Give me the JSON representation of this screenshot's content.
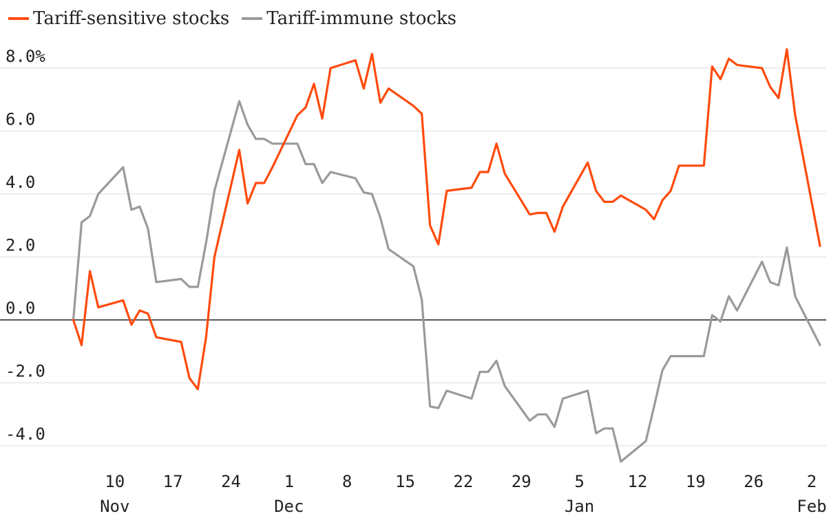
{
  "chart_data": {
    "type": "line",
    "ylim": [
      -4.6,
      8.6
    ],
    "y_ticks": [
      {
        "value": 8,
        "label": "8.0%"
      },
      {
        "value": 6,
        "label": "6.0"
      },
      {
        "value": 4,
        "label": "4.0"
      },
      {
        "value": 2,
        "label": "2.0"
      },
      {
        "value": 0,
        "label": "0.0"
      },
      {
        "value": -2,
        "label": "-2.0"
      },
      {
        "value": -4,
        "label": "-4.0"
      }
    ],
    "x_ticks": [
      {
        "day": 10,
        "label": "10",
        "month_label": "Nov"
      },
      {
        "day": 17,
        "label": "17",
        "month_label": ""
      },
      {
        "day": 24,
        "label": "24",
        "month_label": ""
      },
      {
        "day": 31,
        "label": "1",
        "month_label": "Dec"
      },
      {
        "day": 38,
        "label": "8",
        "month_label": ""
      },
      {
        "day": 45,
        "label": "15",
        "month_label": ""
      },
      {
        "day": 52,
        "label": "22",
        "month_label": ""
      },
      {
        "day": 59,
        "label": "29",
        "month_label": ""
      },
      {
        "day": 66,
        "label": "5",
        "month_label": "Jan"
      },
      {
        "day": 73,
        "label": "12",
        "month_label": ""
      },
      {
        "day": 80,
        "label": "19",
        "month_label": ""
      },
      {
        "day": 87,
        "label": "26",
        "month_label": ""
      },
      {
        "day": 94,
        "label": "2",
        "month_label": "Feb"
      }
    ],
    "grid": true,
    "legend_position": "top-left",
    "series": [
      {
        "name": "Tariff-sensitive stocks",
        "color": "#ff4a0d",
        "points": [
          [
            5,
            0.0
          ],
          [
            6,
            -0.8
          ],
          [
            7,
            1.55
          ],
          [
            8,
            0.4
          ],
          [
            11,
            0.62
          ],
          [
            12,
            -0.15
          ],
          [
            13,
            0.3
          ],
          [
            14,
            0.2
          ],
          [
            15,
            -0.55
          ],
          [
            18,
            -0.7
          ],
          [
            19,
            -1.85
          ],
          [
            20,
            -2.2
          ],
          [
            21,
            -0.55
          ],
          [
            22,
            2.0
          ],
          [
            25,
            5.4
          ],
          [
            26,
            3.7
          ],
          [
            27,
            4.35
          ],
          [
            28,
            4.35
          ],
          [
            29,
            4.85
          ],
          [
            32,
            6.5
          ],
          [
            33,
            6.75
          ],
          [
            34,
            7.5
          ],
          [
            35,
            6.4
          ],
          [
            36,
            8.0
          ],
          [
            39,
            8.25
          ],
          [
            40,
            7.35
          ],
          [
            41,
            8.45
          ],
          [
            42,
            6.9
          ],
          [
            43,
            7.35
          ],
          [
            46,
            6.8
          ],
          [
            47,
            6.55
          ],
          [
            48,
            3.0
          ],
          [
            49,
            2.4
          ],
          [
            50,
            4.1
          ],
          [
            53,
            4.2
          ],
          [
            54,
            4.7
          ],
          [
            55,
            4.7
          ],
          [
            56,
            5.6
          ],
          [
            57,
            4.65
          ],
          [
            60,
            3.35
          ],
          [
            61,
            3.4
          ],
          [
            62,
            3.4
          ],
          [
            63,
            2.8
          ],
          [
            64,
            3.6
          ],
          [
            67,
            5.0
          ],
          [
            68,
            4.1
          ],
          [
            69,
            3.75
          ],
          [
            70,
            3.75
          ],
          [
            71,
            3.95
          ],
          [
            74,
            3.5
          ],
          [
            75,
            3.2
          ],
          [
            76,
            3.8
          ],
          [
            77,
            4.1
          ],
          [
            78,
            4.9
          ],
          [
            81,
            4.9
          ],
          [
            82,
            8.05
          ],
          [
            83,
            7.65
          ],
          [
            84,
            8.3
          ],
          [
            85,
            8.1
          ],
          [
            88,
            8.0
          ],
          [
            89,
            7.4
          ],
          [
            90,
            7.05
          ],
          [
            91,
            8.6
          ],
          [
            92,
            6.5
          ],
          [
            95,
            2.35
          ]
        ]
      },
      {
        "name": "Tariff-immune stocks",
        "color": "#9a9a9a",
        "points": [
          [
            5,
            0.0
          ],
          [
            6,
            3.1
          ],
          [
            7,
            3.3
          ],
          [
            8,
            4.0
          ],
          [
            11,
            4.85
          ],
          [
            12,
            3.5
          ],
          [
            13,
            3.6
          ],
          [
            14,
            2.9
          ],
          [
            15,
            1.2
          ],
          [
            18,
            1.3
          ],
          [
            19,
            1.05
          ],
          [
            20,
            1.05
          ],
          [
            21,
            2.45
          ],
          [
            22,
            4.1
          ],
          [
            25,
            6.95
          ],
          [
            26,
            6.2
          ],
          [
            27,
            5.75
          ],
          [
            28,
            5.75
          ],
          [
            29,
            5.6
          ],
          [
            32,
            5.6
          ],
          [
            33,
            4.95
          ],
          [
            34,
            4.95
          ],
          [
            35,
            4.35
          ],
          [
            36,
            4.7
          ],
          [
            39,
            4.5
          ],
          [
            40,
            4.05
          ],
          [
            41,
            4.0
          ],
          [
            42,
            3.25
          ],
          [
            43,
            2.25
          ],
          [
            46,
            1.7
          ],
          [
            47,
            0.65
          ],
          [
            48,
            -2.75
          ],
          [
            49,
            -2.8
          ],
          [
            50,
            -2.25
          ],
          [
            53,
            -2.5
          ],
          [
            54,
            -1.65
          ],
          [
            55,
            -1.65
          ],
          [
            56,
            -1.3
          ],
          [
            57,
            -2.1
          ],
          [
            60,
            -3.2
          ],
          [
            61,
            -3.0
          ],
          [
            62,
            -3.0
          ],
          [
            63,
            -3.4
          ],
          [
            64,
            -2.5
          ],
          [
            67,
            -2.25
          ],
          [
            68,
            -3.6
          ],
          [
            69,
            -3.45
          ],
          [
            70,
            -3.45
          ],
          [
            71,
            -4.5
          ],
          [
            74,
            -3.85
          ],
          [
            75,
            -2.75
          ],
          [
            76,
            -1.6
          ],
          [
            77,
            -1.15
          ],
          [
            78,
            -1.15
          ],
          [
            81,
            -1.15
          ],
          [
            82,
            0.15
          ],
          [
            83,
            -0.05
          ],
          [
            84,
            0.75
          ],
          [
            85,
            0.3
          ],
          [
            88,
            1.85
          ],
          [
            89,
            1.2
          ],
          [
            90,
            1.1
          ],
          [
            91,
            2.3
          ],
          [
            92,
            0.75
          ],
          [
            95,
            -0.8
          ]
        ]
      }
    ]
  }
}
